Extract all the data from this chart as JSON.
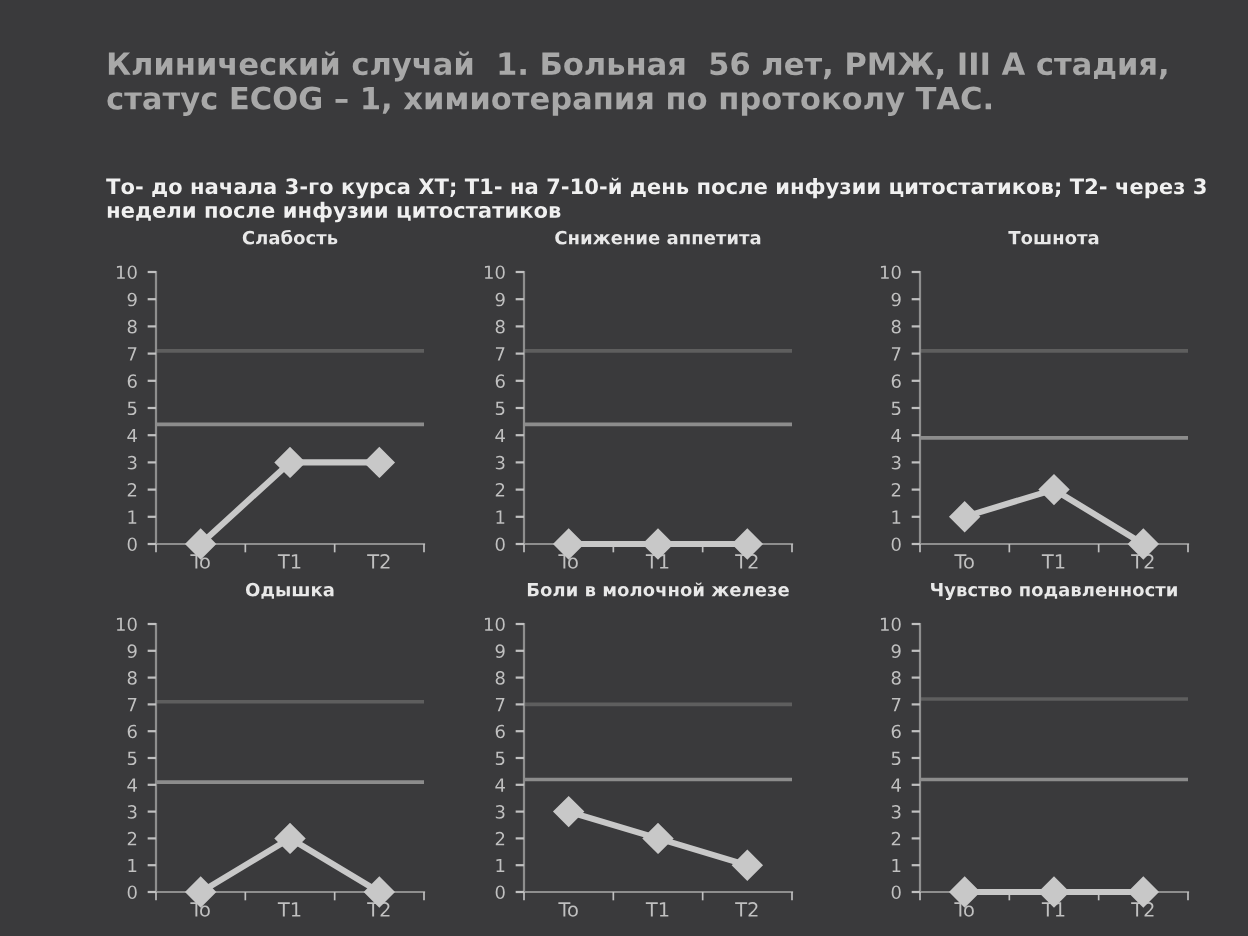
{
  "chart_data": [
    {
      "type": "other",
      "title": "Клинический случай  1. Больная  56 лет, РМЖ, III А стадия, статус ECOG – 1, химиотерапия по протоколу ТАС.",
      "subtitle": "То- до начала 3-го курса ХТ; Т1- на 7-10-й день после инфузии цитостатиков; Т2- через 3 недели после инфузии цитостатиков"
    },
    {
      "type": "line",
      "title": "Слабость",
      "categories": [
        "To",
        "T1",
        "T2"
      ],
      "series": [
        {
          "color": "#c8c8c8",
          "values": [
            0,
            3,
            3
          ]
        }
      ],
      "ylim": [
        0,
        10
      ],
      "yticks": [
        0,
        1,
        2,
        3,
        4,
        5,
        6,
        7,
        8,
        9,
        10
      ],
      "marker": "diamond",
      "grid": false,
      "ref_lines": [
        {
          "axis": "y",
          "value": 7.1,
          "color": "#5e5e5e"
        },
        {
          "axis": "y",
          "value": 4.4,
          "color": "#8c8c8c"
        }
      ]
    },
    {
      "type": "line",
      "title": "Снижение аппетита",
      "categories": [
        "To",
        "T1",
        "T2"
      ],
      "series": [
        {
          "color": "#c8c8c8",
          "values": [
            0,
            0,
            0
          ]
        }
      ],
      "ylim": [
        0,
        10
      ],
      "yticks": [
        0,
        1,
        2,
        3,
        4,
        5,
        6,
        7,
        8,
        9,
        10
      ],
      "marker": "diamond",
      "grid": false,
      "ref_lines": [
        {
          "axis": "y",
          "value": 7.1,
          "color": "#5e5e5e"
        },
        {
          "axis": "y",
          "value": 4.4,
          "color": "#8c8c8c"
        }
      ]
    },
    {
      "type": "line",
      "title": "Тошнота",
      "categories": [
        "To",
        "T1",
        "T2"
      ],
      "series": [
        {
          "color": "#c8c8c8",
          "values": [
            1,
            2,
            0
          ]
        }
      ],
      "ylim": [
        0,
        10
      ],
      "yticks": [
        0,
        1,
        2,
        3,
        4,
        5,
        6,
        7,
        8,
        9,
        10
      ],
      "marker": "diamond",
      "grid": false,
      "ref_lines": [
        {
          "axis": "y",
          "value": 7.1,
          "color": "#5e5e5e"
        },
        {
          "axis": "y",
          "value": 3.9,
          "color": "#8c8c8c"
        }
      ]
    },
    {
      "type": "line",
      "title": "Одышка",
      "categories": [
        "To",
        "T1",
        "T2"
      ],
      "series": [
        {
          "color": "#c8c8c8",
          "values": [
            0,
            2,
            0
          ]
        }
      ],
      "ylim": [
        0,
        10
      ],
      "yticks": [
        0,
        1,
        2,
        3,
        4,
        5,
        6,
        7,
        8,
        9,
        10
      ],
      "marker": "diamond",
      "grid": false,
      "ref_lines": [
        {
          "axis": "y",
          "value": 7.1,
          "color": "#5e5e5e"
        },
        {
          "axis": "y",
          "value": 4.1,
          "color": "#8c8c8c"
        }
      ]
    },
    {
      "type": "line",
      "title": "Боли в молочной железе",
      "categories": [
        "To",
        "T1",
        "T2"
      ],
      "series": [
        {
          "color": "#c8c8c8",
          "values": [
            3,
            2,
            1
          ]
        }
      ],
      "ylim": [
        0,
        10
      ],
      "yticks": [
        0,
        1,
        2,
        3,
        4,
        5,
        6,
        7,
        8,
        9,
        10
      ],
      "marker": "diamond",
      "grid": false,
      "ref_lines": [
        {
          "axis": "y",
          "value": 7,
          "color": "#5e5e5e"
        },
        {
          "axis": "y",
          "value": 4.2,
          "color": "#8c8c8c"
        }
      ]
    },
    {
      "type": "line",
      "title": "Чувство подавленности",
      "categories": [
        "To",
        "T1",
        "T2"
      ],
      "series": [
        {
          "color": "#c8c8c8",
          "values": [
            0,
            0,
            0
          ]
        }
      ],
      "ylim": [
        0,
        10
      ],
      "yticks": [
        0,
        1,
        2,
        3,
        4,
        5,
        6,
        7,
        8,
        9,
        10
      ],
      "marker": "diamond",
      "grid": false,
      "ref_lines": [
        {
          "axis": "y",
          "value": 7.2,
          "color": "#5e5e5e"
        },
        {
          "axis": "y",
          "value": 4.2,
          "color": "#8c8c8c"
        }
      ]
    }
  ]
}
